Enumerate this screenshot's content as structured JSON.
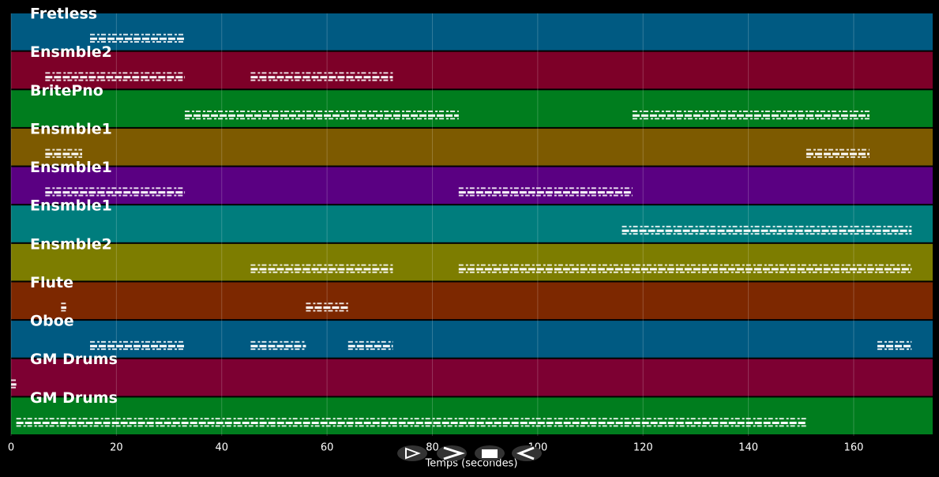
{
  "chart_data": {
    "type": "piano_roll",
    "xlabel": "Temps (secondes)",
    "xlim": [
      0,
      175
    ],
    "xticks": [
      0,
      20,
      40,
      60,
      80,
      100,
      120,
      140,
      160
    ],
    "grid": true,
    "tracks": [
      {
        "name": "Fretless",
        "color": "#005a82",
        "segments": [
          [
            15,
            33
          ]
        ]
      },
      {
        "name": "Ensmble2",
        "color": "#7d0028",
        "segments": [
          [
            6.5,
            33
          ],
          [
            45.5,
            72.5
          ]
        ]
      },
      {
        "name": "BritePno",
        "color": "#007d1e",
        "segments": [
          [
            33,
            85
          ],
          [
            118,
            163
          ]
        ]
      },
      {
        "name": "Ensmble1",
        "color": "#7d5a00",
        "segments": [
          [
            6.5,
            13.5
          ],
          [
            151,
            163
          ]
        ]
      },
      {
        "name": "Ensmble1",
        "color": "#5a0082",
        "segments": [
          [
            6.5,
            33
          ],
          [
            85,
            118
          ]
        ]
      },
      {
        "name": "Ensmble1",
        "color": "#007d7d",
        "segments": [
          [
            116,
            171
          ]
        ]
      },
      {
        "name": "Ensmble2",
        "color": "#7d7d00",
        "segments": [
          [
            45.5,
            72.5
          ],
          [
            85,
            171
          ]
        ]
      },
      {
        "name": "Flute",
        "color": "#7d2800",
        "segments": [
          [
            9.5,
            10.5
          ],
          [
            56,
            64
          ]
        ]
      },
      {
        "name": "Oboe",
        "color": "#005a82",
        "segments": [
          [
            15,
            33
          ],
          [
            45.5,
            56
          ],
          [
            64,
            72.5
          ],
          [
            164.5,
            171
          ]
        ]
      },
      {
        "name": "GM Drums",
        "color": "#7d0032",
        "segments": [
          [
            0,
            1
          ]
        ]
      },
      {
        "name": "GM Drums",
        "color": "#007d1e",
        "segments": [
          [
            1,
            151
          ]
        ]
      }
    ]
  }
}
